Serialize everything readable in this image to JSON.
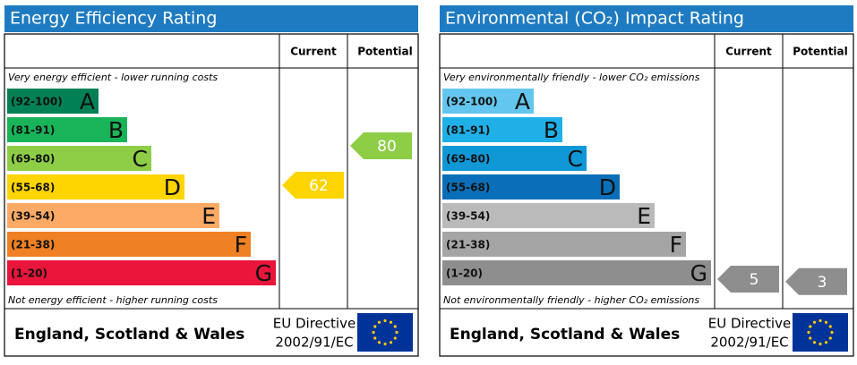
{
  "chart_data": [
    {
      "type": "epc",
      "title": "Energy Efficiency Rating",
      "col_current": "Current",
      "col_potential": "Potential",
      "top_text": "Very energy efficient - lower running costs",
      "bottom_text": "Not energy efficient - higher running costs",
      "bands": [
        {
          "label": "(92-100)",
          "letter": "A",
          "min": 92,
          "max": 100,
          "color": "#008054"
        },
        {
          "label": "(81-91)",
          "letter": "B",
          "min": 81,
          "max": 91,
          "color": "#19b459"
        },
        {
          "label": "(69-80)",
          "letter": "C",
          "min": 69,
          "max": 80,
          "color": "#8dce46"
        },
        {
          "label": "(55-68)",
          "letter": "D",
          "min": 55,
          "max": 68,
          "color": "#ffd500"
        },
        {
          "label": "(39-54)",
          "letter": "E",
          "min": 39,
          "max": 54,
          "color": "#fcaa65"
        },
        {
          "label": "(21-38)",
          "letter": "F",
          "min": 21,
          "max": 38,
          "color": "#ef8023"
        },
        {
          "label": "(1-20)",
          "letter": "G",
          "min": 1,
          "max": 20,
          "color": "#e9153b"
        }
      ],
      "current": 62,
      "potential": 80,
      "footer_region": "England, Scotland & Wales",
      "footer_directive_1": "EU Directive",
      "footer_directive_2": "2002/91/EC"
    },
    {
      "type": "epc",
      "title": "Environmental (CO₂) Impact Rating",
      "col_current": "Current",
      "col_potential": "Potential",
      "top_text": "Very environmentally friendly - lower CO₂ emissions",
      "bottom_text": "Not environmentally friendly - higher CO₂ emissions",
      "bands": [
        {
          "label": "(92-100)",
          "letter": "A",
          "min": 92,
          "max": 100,
          "color": "#63c6ee"
        },
        {
          "label": "(81-91)",
          "letter": "B",
          "min": 81,
          "max": 91,
          "color": "#1fb0e8"
        },
        {
          "label": "(69-80)",
          "letter": "C",
          "min": 69,
          "max": 80,
          "color": "#0f97d6"
        },
        {
          "label": "(55-68)",
          "letter": "D",
          "min": 55,
          "max": 68,
          "color": "#0a6fb8"
        },
        {
          "label": "(39-54)",
          "letter": "E",
          "min": 39,
          "max": 54,
          "color": "#bababa"
        },
        {
          "label": "(21-38)",
          "letter": "F",
          "min": 21,
          "max": 38,
          "color": "#a5a5a5"
        },
        {
          "label": "(1-20)",
          "letter": "G",
          "min": 1,
          "max": 20,
          "color": "#8e8e8e"
        }
      ],
      "current": 5,
      "potential": 3,
      "footer_region": "England, Scotland & Wales",
      "footer_directive_1": "EU Directive",
      "footer_directive_2": "2002/91/EC"
    }
  ]
}
